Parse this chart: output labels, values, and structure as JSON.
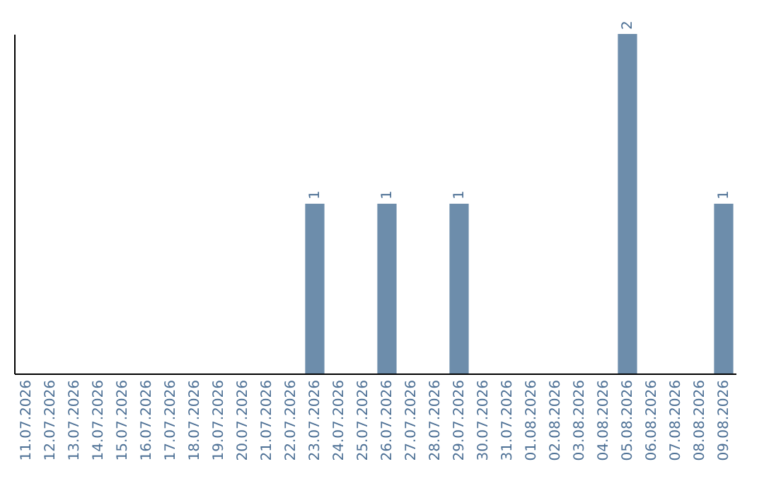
{
  "chart_data": {
    "type": "bar",
    "categories": [
      "11.07.2026",
      "12.07.2026",
      "13.07.2026",
      "14.07.2026",
      "15.07.2026",
      "16.07.2026",
      "17.07.2026",
      "18.07.2026",
      "19.07.2026",
      "20.07.2026",
      "21.07.2026",
      "22.07.2026",
      "23.07.2026",
      "24.07.2026",
      "25.07.2026",
      "26.07.2026",
      "27.07.2026",
      "28.07.2026",
      "29.07.2026",
      "30.07.2026",
      "31.07.2026",
      "01.08.2026",
      "02.08.2026",
      "03.08.2026",
      "04.08.2026",
      "05.08.2026",
      "06.08.2026",
      "07.08.2026",
      "08.08.2026",
      "09.08.2026"
    ],
    "values": [
      null,
      null,
      null,
      null,
      null,
      null,
      null,
      null,
      null,
      null,
      null,
      null,
      1,
      null,
      null,
      1,
      null,
      null,
      1,
      null,
      null,
      null,
      null,
      null,
      null,
      2,
      null,
      null,
      null,
      1
    ],
    "color": "#6d8dab",
    "data_labels": true,
    "tick_labels": "x",
    "grid": false
  }
}
